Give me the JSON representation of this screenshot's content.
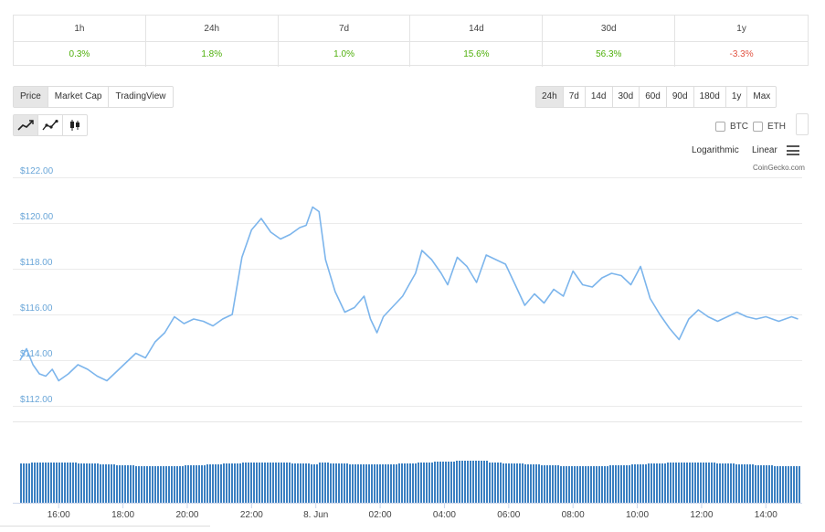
{
  "performance": {
    "periods": [
      {
        "label": "1h",
        "value": "0.3%",
        "trend": "pos"
      },
      {
        "label": "24h",
        "value": "1.8%",
        "trend": "pos"
      },
      {
        "label": "7d",
        "value": "1.0%",
        "trend": "pos"
      },
      {
        "label": "14d",
        "value": "15.6%",
        "trend": "pos"
      },
      {
        "label": "30d",
        "value": "56.3%",
        "trend": "pos"
      },
      {
        "label": "1y",
        "value": "-3.3%",
        "trend": "neg"
      }
    ]
  },
  "tabs": {
    "chart_type": [
      "Price",
      "Market Cap",
      "TradingView"
    ],
    "active_type": "Price",
    "ranges": [
      "24h",
      "7d",
      "14d",
      "30d",
      "60d",
      "90d",
      "180d",
      "1y",
      "Max"
    ],
    "active_range": "24h"
  },
  "chart_modes": [
    {
      "name": "line-chart-icon",
      "active": true
    },
    {
      "name": "ohlc-line-icon",
      "active": false
    },
    {
      "name": "candlestick-icon",
      "active": false
    }
  ],
  "compare": {
    "btc_label": "BTC",
    "eth_label": "ETH"
  },
  "scale": {
    "log_label": "Logarithmic",
    "linear_label": "Linear"
  },
  "credit": "CoinGecko.com",
  "colors": {
    "line": "#7cb5ec",
    "volume": "#3a7fc1",
    "positive": "#4eaf0a",
    "negative": "#e15241"
  },
  "chart_data": {
    "type": "line",
    "y_ticks": [
      "$122.00",
      "$120.00",
      "$118.00",
      "$116.00",
      "$114.00",
      "$112.00"
    ],
    "ylim": [
      112,
      122
    ],
    "x_ticks": [
      "16:00",
      "18:00",
      "20:00",
      "22:00",
      "8. Jun",
      "02:00",
      "04:00",
      "06:00",
      "08:00",
      "10:00",
      "12:00",
      "14:00"
    ],
    "x_tick_hours": [
      16,
      18,
      20,
      22,
      24,
      26,
      28,
      30,
      32,
      34,
      36,
      38
    ],
    "xlim_hours": [
      14.8,
      39.1
    ],
    "series": [
      {
        "x": [
          14.8,
          15.0,
          15.2,
          15.4,
          15.6,
          15.8,
          16.0,
          16.3,
          16.6,
          16.9,
          17.2,
          17.5,
          17.8,
          18.1,
          18.4,
          18.7,
          19.0,
          19.3,
          19.6,
          19.9,
          20.2,
          20.5,
          20.8,
          21.1,
          21.4,
          21.7,
          22.0,
          22.3,
          22.6,
          22.9,
          23.2,
          23.5,
          23.7,
          23.9,
          24.1,
          24.3,
          24.6,
          24.9,
          25.2,
          25.5,
          25.7,
          25.9,
          26.1,
          26.3,
          26.5,
          26.7,
          26.9,
          27.1,
          27.3,
          27.6,
          27.9,
          28.1,
          28.4,
          28.7,
          29.0,
          29.3,
          29.6,
          29.9,
          30.2,
          30.5,
          30.8,
          31.1,
          31.4,
          31.7,
          32.0,
          32.3,
          32.6,
          32.9,
          33.2,
          33.5,
          33.8,
          34.1,
          34.4,
          34.7,
          35.0,
          35.3,
          35.6,
          35.9,
          36.2,
          36.5,
          36.8,
          37.1,
          37.4,
          37.7,
          38.0,
          38.2,
          38.4,
          38.6,
          38.8,
          39.0
        ],
        "y": [
          114.0,
          114.5,
          113.8,
          113.4,
          113.3,
          113.6,
          113.1,
          113.4,
          113.8,
          113.6,
          113.3,
          113.1,
          113.5,
          113.9,
          114.3,
          114.1,
          114.8,
          115.2,
          115.9,
          115.6,
          115.8,
          115.7,
          115.5,
          115.8,
          116.0,
          118.5,
          119.7,
          120.2,
          119.6,
          119.3,
          119.5,
          119.8,
          119.9,
          120.7,
          120.5,
          118.4,
          117.0,
          116.1,
          116.3,
          116.8,
          115.8,
          115.2,
          115.9,
          116.2,
          116.5,
          116.8,
          117.3,
          117.8,
          118.8,
          118.4,
          117.8,
          117.3,
          118.5,
          118.1,
          117.4,
          118.6,
          118.4,
          118.2,
          117.3,
          116.4,
          116.9,
          116.5,
          117.1,
          116.8,
          117.9,
          117.3,
          117.2,
          117.6,
          117.8,
          117.7,
          117.3,
          118.1,
          116.7,
          116.0,
          115.4,
          114.9,
          115.8,
          116.2,
          115.9,
          115.7,
          115.9,
          116.1,
          115.9,
          115.8,
          115.9,
          115.8,
          115.7,
          115.8,
          115.9,
          115.8
        ]
      }
    ],
    "volume_note": "",
    "grid": true,
    "legend": "none"
  }
}
